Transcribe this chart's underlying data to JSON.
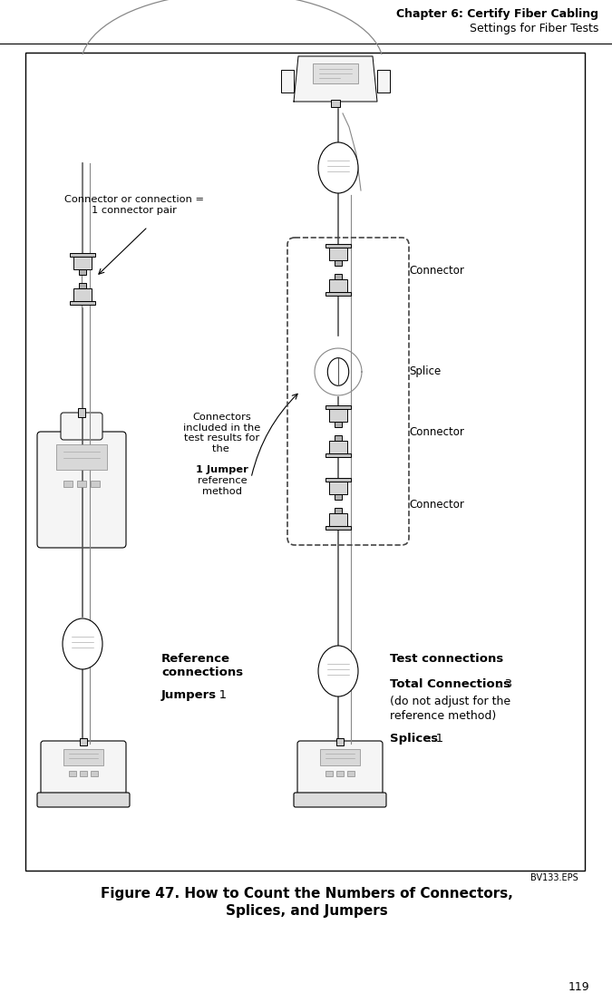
{
  "header_line1": "Chapter 6: Certify Fiber Cabling",
  "header_line2": "Settings for Fiber Tests",
  "figure_label": "BV133.EPS",
  "figure_caption_line1": "Figure 47. How to Count the Numbers of Connectors,",
  "figure_caption_line2": "Splices, and Jumpers",
  "page_number": "119",
  "label_connector_or_connection": "Connector or connection =\n1 connector pair",
  "label_connector1": "Connector",
  "label_splice": "Splice",
  "label_connector2": "Connector",
  "label_connector3": "Connector",
  "label_connectors_included_p1": "Connectors\nincluded in the\ntest results for\nthe ",
  "label_connectors_included_bold": "1 Jumper",
  "label_connectors_included_p2": "\nreference\nmethod",
  "label_reference": "Reference\nconnections",
  "label_jumpers_bold": "Jumpers",
  "label_jumpers_rest": ": 1",
  "label_test_connections": "Test connections",
  "label_total_bold": "Total Connections",
  "label_total_rest": ": 3\n(do not adjust for the\nreference method)",
  "label_splices_bold": "Splices",
  "label_splices_rest": ": 1",
  "bg_color": "#ffffff",
  "text_color": "#000000",
  "diagram_bg": "#ffffff",
  "box_edge": "#000000",
  "cable_color": "#333333",
  "device_fill": "#f5f5f5",
  "device_dark": "#cccccc",
  "dashed_line_color": "#444444"
}
